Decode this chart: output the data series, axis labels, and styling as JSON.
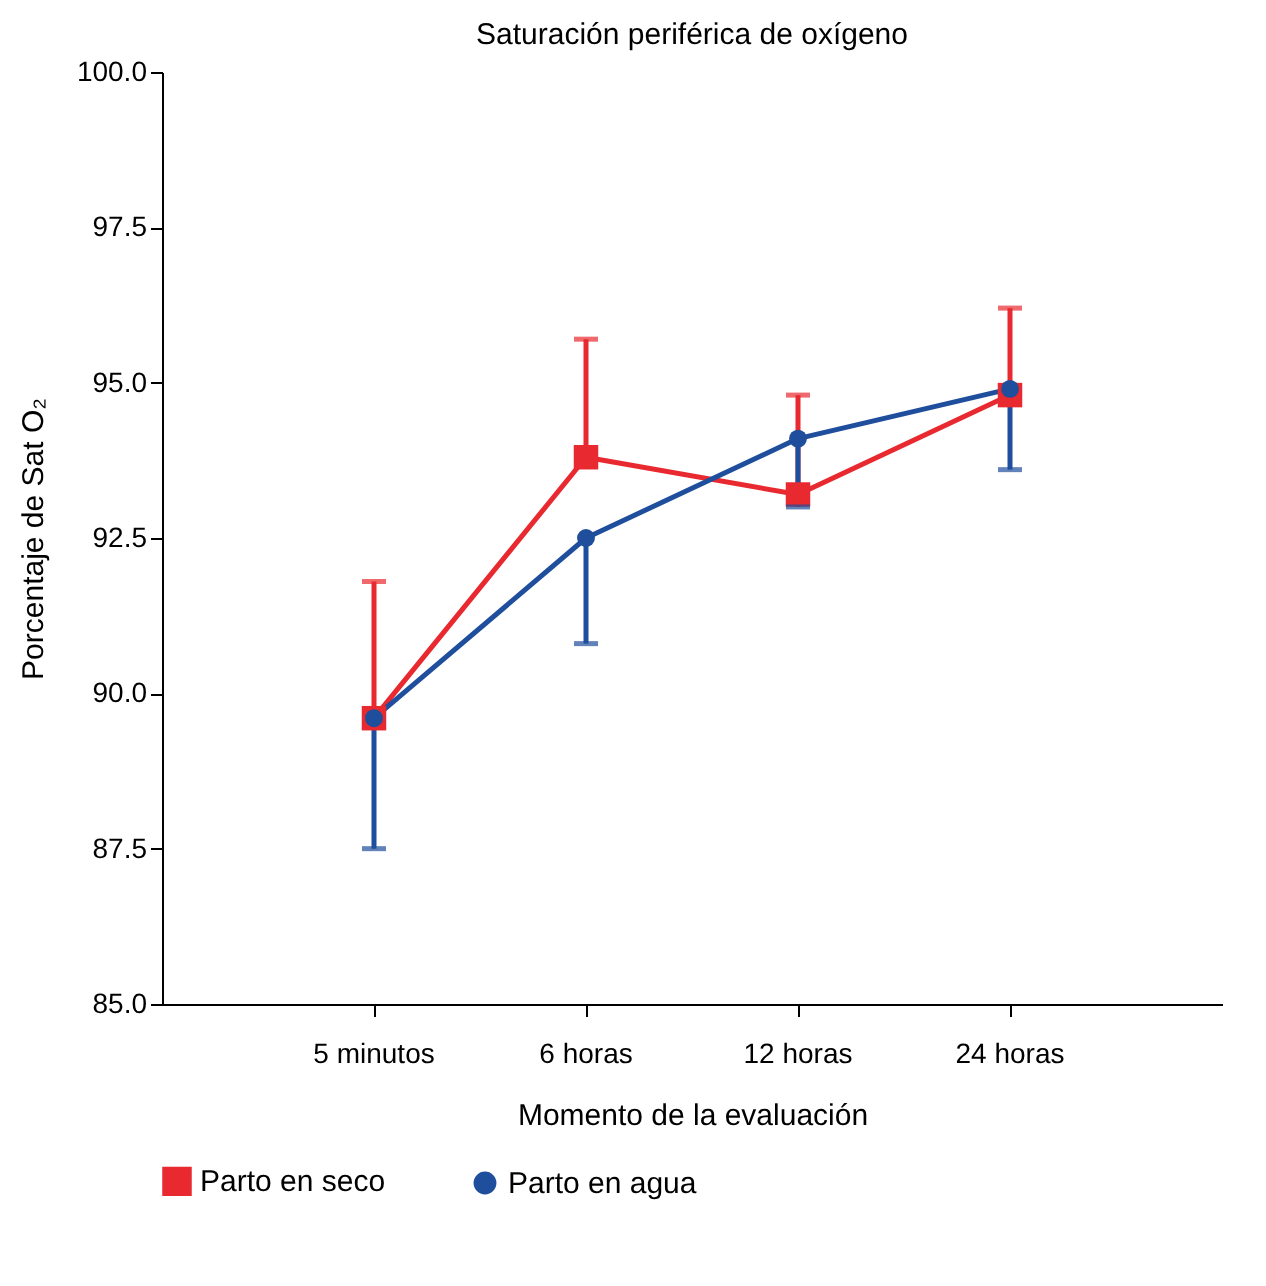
{
  "chart_data": {
    "type": "line",
    "title": "Saturación periférica de oxígeno",
    "xlabel": "Momento de la evaluación",
    "ylabel": "Porcentaje de Sat O₂",
    "categories": [
      "5 minutos",
      "6 horas",
      "12 horas",
      "24 horas"
    ],
    "series": [
      {
        "name": "Parto en seco",
        "color": "#e8292f",
        "marker": "square",
        "values": [
          89.6,
          93.8,
          93.2,
          94.8
        ],
        "errors": [
          [
            89.6,
            91.8
          ],
          [
            93.8,
            95.7
          ],
          [
            93.2,
            94.8
          ],
          [
            94.8,
            96.2
          ]
        ]
      },
      {
        "name": "Parto en agua",
        "color": "#1f4e9d",
        "marker": "circle",
        "values": [
          89.6,
          92.5,
          94.1,
          94.9
        ],
        "errors": [
          [
            87.5,
            89.6
          ],
          [
            90.8,
            92.5
          ],
          [
            93.0,
            94.1
          ],
          [
            93.6,
            94.9
          ]
        ]
      }
    ],
    "ylim": [
      85,
      100
    ],
    "yticks": [
      {
        "value": 85,
        "label": "85.0"
      },
      87.5,
      {
        "value": 90,
        "label": "90.0"
      },
      92.5,
      {
        "value": 95,
        "label": "95.0"
      },
      97.5,
      {
        "value": 100,
        "label": "100.0"
      }
    ],
    "grid": false,
    "legend": "bottom",
    "line_style": "solid"
  }
}
